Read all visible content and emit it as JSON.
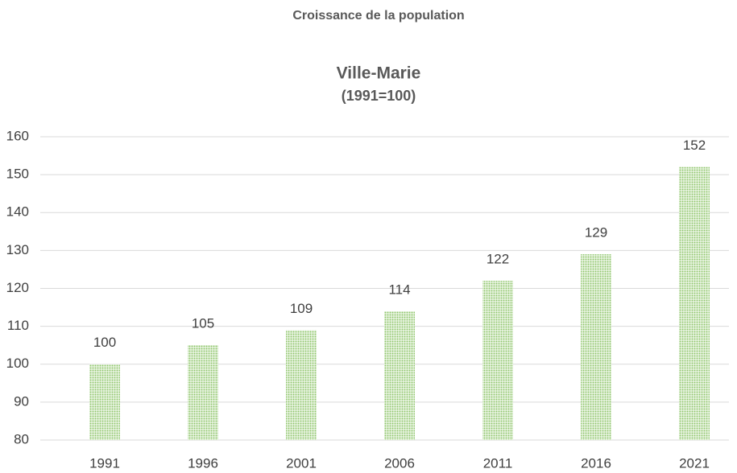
{
  "chart_data": {
    "type": "bar",
    "title": "Croissance de la population",
    "subtitle": [
      "Ville-Marie",
      "(1991=100)"
    ],
    "categories": [
      "1991",
      "1996",
      "2001",
      "2006",
      "2011",
      "2016",
      "2021"
    ],
    "values": [
      100,
      105,
      109,
      114,
      122,
      129,
      152
    ],
    "color": "#8fc66b",
    "ylim": [
      80,
      160
    ],
    "yticks": [
      80,
      90,
      100,
      110,
      120,
      130,
      140,
      150,
      160
    ],
    "grid": true
  }
}
